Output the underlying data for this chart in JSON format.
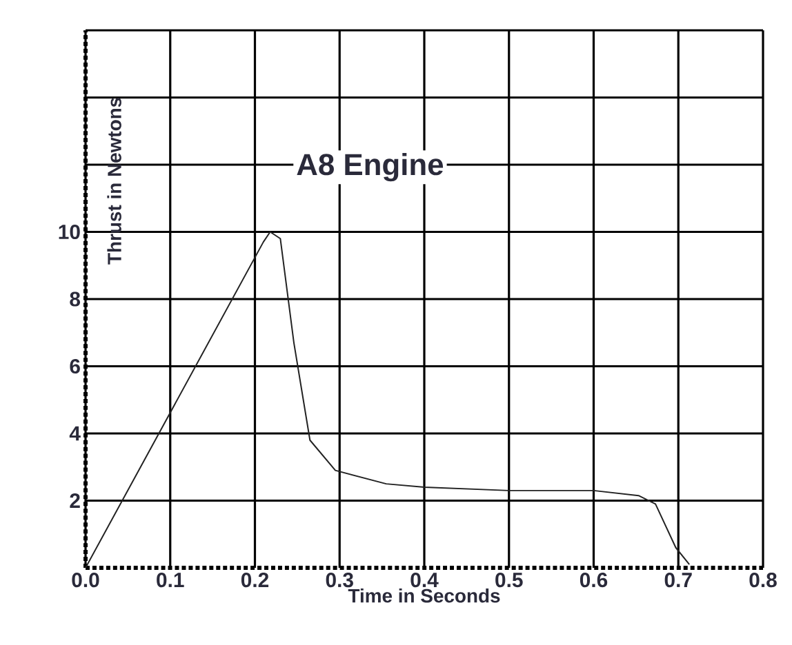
{
  "chart_data": {
    "type": "line",
    "title": "A8 Engine",
    "xlabel": "Time in Seconds",
    "ylabel": "Thrust in Newtons",
    "x": [
      0,
      0.21,
      0.218,
      0.23,
      0.246,
      0.265,
      0.295,
      0.355,
      0.4,
      0.5,
      0.6,
      0.653,
      0.673,
      0.697,
      0.713
    ],
    "series": [
      {
        "color": "#222222",
        "values": [
          0,
          9.7,
          10.0,
          9.8,
          6.7,
          3.8,
          2.9,
          2.5,
          2.4,
          2.3,
          2.3,
          2.15,
          1.9,
          0.6,
          0.1
        ]
      }
    ],
    "xlim": [
      0,
      0.8
    ],
    "ylim": [
      0,
      16
    ],
    "xticks": [
      {
        "value": 0,
        "label": "0.0"
      },
      0.1,
      0.2,
      0.3,
      0.4,
      0.5,
      0.6,
      0.7,
      0.8
    ],
    "yticks": [
      2,
      4,
      6,
      8,
      10,
      {
        "value": 12,
        "label": null
      },
      {
        "value": 14,
        "label": null
      },
      {
        "value": 16,
        "label": null
      }
    ],
    "grid": true,
    "marker": "none",
    "line_style": "solid"
  }
}
